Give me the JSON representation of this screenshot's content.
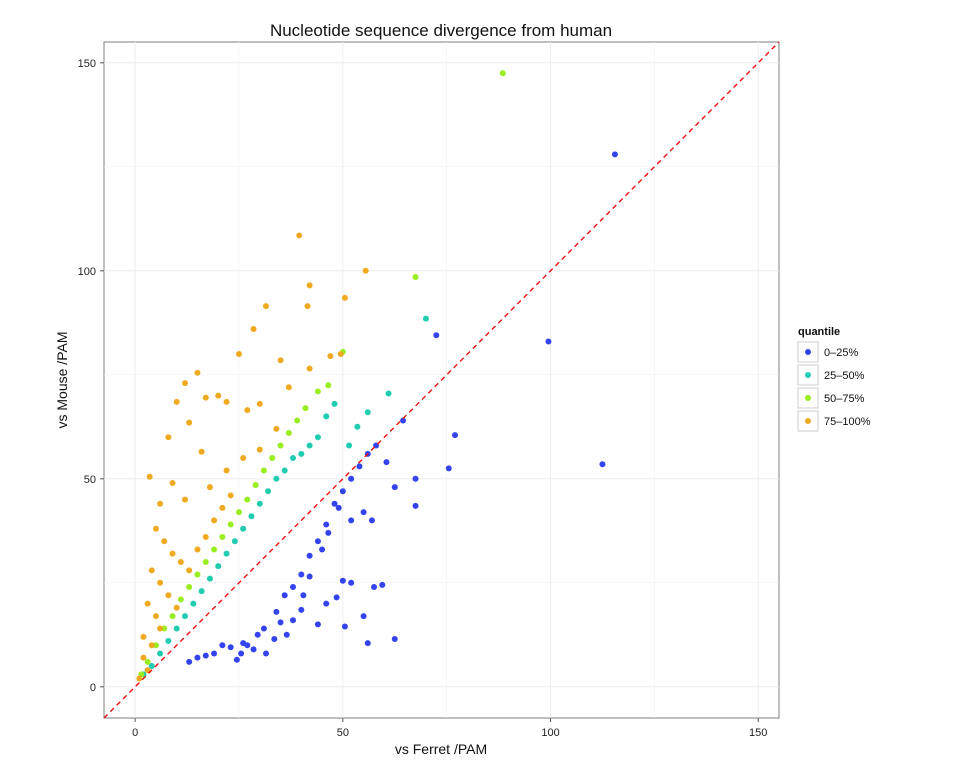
{
  "chart_data": {
    "type": "scatter",
    "title": "Nucleotide sequence divergence from human",
    "xlabel": "vs Ferret  /PAM",
    "ylabel": "vs Mouse  /PAM",
    "xlim": [
      -7.5,
      155
    ],
    "ylim": [
      -7.5,
      155
    ],
    "xticks": [
      "0",
      "50",
      "100",
      "150"
    ],
    "yticks": [
      "0",
      "50",
      "100",
      "150"
    ],
    "grid": true,
    "reference_line": {
      "type": "y=x",
      "style": "dashed",
      "color": "#ee1111"
    },
    "legend": {
      "title": "quantile",
      "placement": "right"
    },
    "series": [
      {
        "name": "0–25%",
        "color": "#3344ee",
        "points": [
          [
            115.5,
            128
          ],
          [
            99.5,
            83
          ],
          [
            112.5,
            53.5
          ],
          [
            77,
            60.5
          ],
          [
            72.5,
            84.5
          ],
          [
            75.5,
            52.5
          ],
          [
            67.5,
            50
          ],
          [
            67.5,
            43.5
          ],
          [
            64.5,
            64
          ],
          [
            62.5,
            48
          ],
          [
            62.5,
            11.5
          ],
          [
            59.5,
            24.5
          ],
          [
            57.5,
            24
          ],
          [
            56,
            10.5
          ],
          [
            60.5,
            54
          ],
          [
            57,
            40
          ],
          [
            55,
            42
          ],
          [
            52,
            25
          ],
          [
            50,
            25.5
          ],
          [
            48.5,
            21.5
          ],
          [
            50.5,
            14.5
          ],
          [
            55,
            17
          ],
          [
            52,
            40
          ],
          [
            49,
            43
          ],
          [
            46,
            20
          ],
          [
            44,
            15
          ],
          [
            46.5,
            37
          ],
          [
            45,
            33
          ],
          [
            42,
            26.5
          ],
          [
            40.5,
            22
          ],
          [
            40,
            18.5
          ],
          [
            38,
            16
          ],
          [
            36.5,
            12.5
          ],
          [
            35,
            15.5
          ],
          [
            33.5,
            11.5
          ],
          [
            31.5,
            8
          ],
          [
            28.5,
            9
          ],
          [
            27,
            10
          ],
          [
            25.5,
            8
          ],
          [
            23,
            9.5
          ],
          [
            21,
            10
          ],
          [
            19,
            8
          ],
          [
            17,
            7.5
          ],
          [
            15,
            7
          ],
          [
            13,
            6
          ],
          [
            24.5,
            6.5
          ],
          [
            26,
            10.5
          ],
          [
            29.5,
            12.5
          ],
          [
            31,
            14
          ],
          [
            34,
            18
          ],
          [
            36,
            22
          ],
          [
            38,
            24
          ],
          [
            40,
            27
          ],
          [
            42,
            31.5
          ],
          [
            44,
            35
          ],
          [
            46,
            39
          ],
          [
            48,
            44
          ],
          [
            50,
            47
          ],
          [
            52,
            50
          ],
          [
            54,
            53
          ],
          [
            56,
            56
          ],
          [
            58,
            58
          ]
        ]
      },
      {
        "name": "25–50%",
        "color": "#22ccb0",
        "points": [
          [
            70,
            88.5
          ],
          [
            61,
            70.5
          ],
          [
            56,
            66
          ],
          [
            53.5,
            62.5
          ],
          [
            51.5,
            58
          ],
          [
            48,
            68
          ],
          [
            46,
            65
          ],
          [
            44,
            60
          ],
          [
            42,
            58
          ],
          [
            40,
            56
          ],
          [
            38,
            55
          ],
          [
            36,
            52
          ],
          [
            34,
            50
          ],
          [
            32,
            47
          ],
          [
            30,
            44
          ],
          [
            28,
            41
          ],
          [
            26,
            38
          ],
          [
            24,
            35
          ],
          [
            22,
            32
          ],
          [
            20,
            29
          ],
          [
            18,
            26
          ],
          [
            16,
            23
          ],
          [
            14,
            20
          ],
          [
            12,
            17
          ],
          [
            10,
            14
          ],
          [
            8,
            11
          ],
          [
            6,
            8
          ],
          [
            4,
            5
          ],
          [
            2,
            3
          ]
        ]
      },
      {
        "name": "50–75%",
        "color": "#99ee22",
        "points": [
          [
            88.5,
            147.5
          ],
          [
            67.5,
            98.5
          ],
          [
            50,
            80.5
          ],
          [
            46.5,
            72.5
          ],
          [
            44,
            71
          ],
          [
            41,
            67
          ],
          [
            39,
            64
          ],
          [
            37,
            61
          ],
          [
            35,
            58
          ],
          [
            33,
            55
          ],
          [
            31,
            52
          ],
          [
            29,
            48.5
          ],
          [
            27,
            45
          ],
          [
            25,
            42
          ],
          [
            23,
            39
          ],
          [
            21,
            36
          ],
          [
            19,
            33
          ],
          [
            17,
            30
          ],
          [
            15,
            27
          ],
          [
            13,
            24
          ],
          [
            11,
            21
          ],
          [
            9,
            17
          ],
          [
            7,
            14
          ],
          [
            5,
            10
          ],
          [
            3,
            6
          ],
          [
            1.5,
            3
          ]
        ]
      },
      {
        "name": "75–100%",
        "color": "#f0aa22",
        "points": [
          [
            39.5,
            108.5
          ],
          [
            55.5,
            100
          ],
          [
            50.5,
            93.5
          ],
          [
            42,
            96.5
          ],
          [
            31.5,
            91.5
          ],
          [
            41.5,
            91.5
          ],
          [
            28.5,
            86
          ],
          [
            49.5,
            80
          ],
          [
            25,
            80
          ],
          [
            47,
            79.5
          ],
          [
            35,
            78.5
          ],
          [
            15,
            75.5
          ],
          [
            12,
            73
          ],
          [
            20,
            70
          ],
          [
            17,
            69.5
          ],
          [
            22,
            68.5
          ],
          [
            27,
            66.5
          ],
          [
            37,
            72
          ],
          [
            42,
            76.5
          ],
          [
            30,
            68
          ],
          [
            10,
            68.5
          ],
          [
            13,
            63.5
          ],
          [
            8,
            60
          ],
          [
            16,
            56.5
          ],
          [
            3.5,
            50.5
          ],
          [
            9,
            49
          ],
          [
            6,
            44
          ],
          [
            12,
            45
          ],
          [
            18,
            48
          ],
          [
            22,
            52
          ],
          [
            26,
            55
          ],
          [
            30,
            57
          ],
          [
            34,
            62
          ],
          [
            5,
            38
          ],
          [
            7,
            35
          ],
          [
            9,
            32
          ],
          [
            11,
            30
          ],
          [
            13,
            28
          ],
          [
            15,
            33
          ],
          [
            17,
            36
          ],
          [
            19,
            40
          ],
          [
            21,
            43
          ],
          [
            23,
            46
          ],
          [
            4,
            28
          ],
          [
            6,
            25
          ],
          [
            8,
            22
          ],
          [
            10,
            19
          ],
          [
            3,
            20
          ],
          [
            5,
            17
          ],
          [
            2,
            12
          ],
          [
            4,
            10
          ],
          [
            6,
            14
          ],
          [
            2,
            7
          ],
          [
            3,
            4
          ],
          [
            1,
            2
          ]
        ]
      }
    ]
  }
}
